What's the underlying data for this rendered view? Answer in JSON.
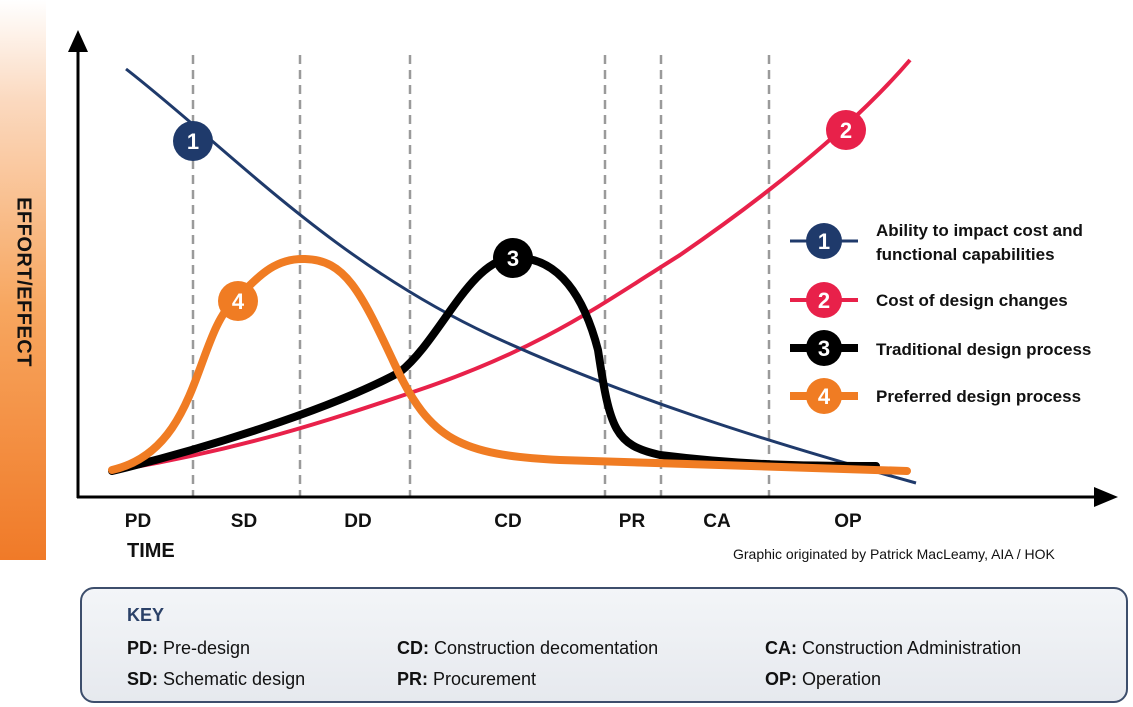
{
  "y_axis_label": "EFFORT/EFFECT",
  "x_axis_label": "TIME",
  "credit": "Graphic originated by Patrick MacLeamy, AIA / HOK",
  "phases": [
    "PD",
    "SD",
    "DD",
    "CD",
    "PR",
    "CA",
    "OP"
  ],
  "legend": [
    {
      "number": "1",
      "text_line1": "Ability to impact cost and",
      "text_line2": "functional capabilities",
      "color": "#1f3a6b"
    },
    {
      "number": "2",
      "text_line1": "Cost of design changes",
      "text_line2": "",
      "color": "#e8214a"
    },
    {
      "number": "3",
      "text_line1": "Traditional design process",
      "text_line2": "",
      "color": "#000000"
    },
    {
      "number": "4",
      "text_line1": "Preferred design process",
      "text_line2": "",
      "color": "#f07c23"
    }
  ],
  "curve_badges": [
    "1",
    "2",
    "3",
    "4"
  ],
  "key": {
    "title": "KEY",
    "items": [
      {
        "abbr": "PD",
        "sep": ":",
        "desc": " Pre-design"
      },
      {
        "abbr": "SD",
        "sep": ":",
        "desc": " Schematic design"
      },
      {
        "abbr": "CD",
        "sep": ":",
        "desc": " Construction decomentation"
      },
      {
        "abbr": "PR",
        "sep": ":",
        "desc": " Procurement"
      },
      {
        "abbr": "CA",
        "sep": ":",
        "desc": " Construction Administration"
      },
      {
        "abbr": "OP",
        "sep": ":",
        "desc": " Operation"
      }
    ]
  },
  "colors": {
    "navy": "#1f3a6b",
    "red": "#e8214a",
    "black": "#000000",
    "orange": "#f07c23",
    "key_border": "#3d4e6c"
  }
}
